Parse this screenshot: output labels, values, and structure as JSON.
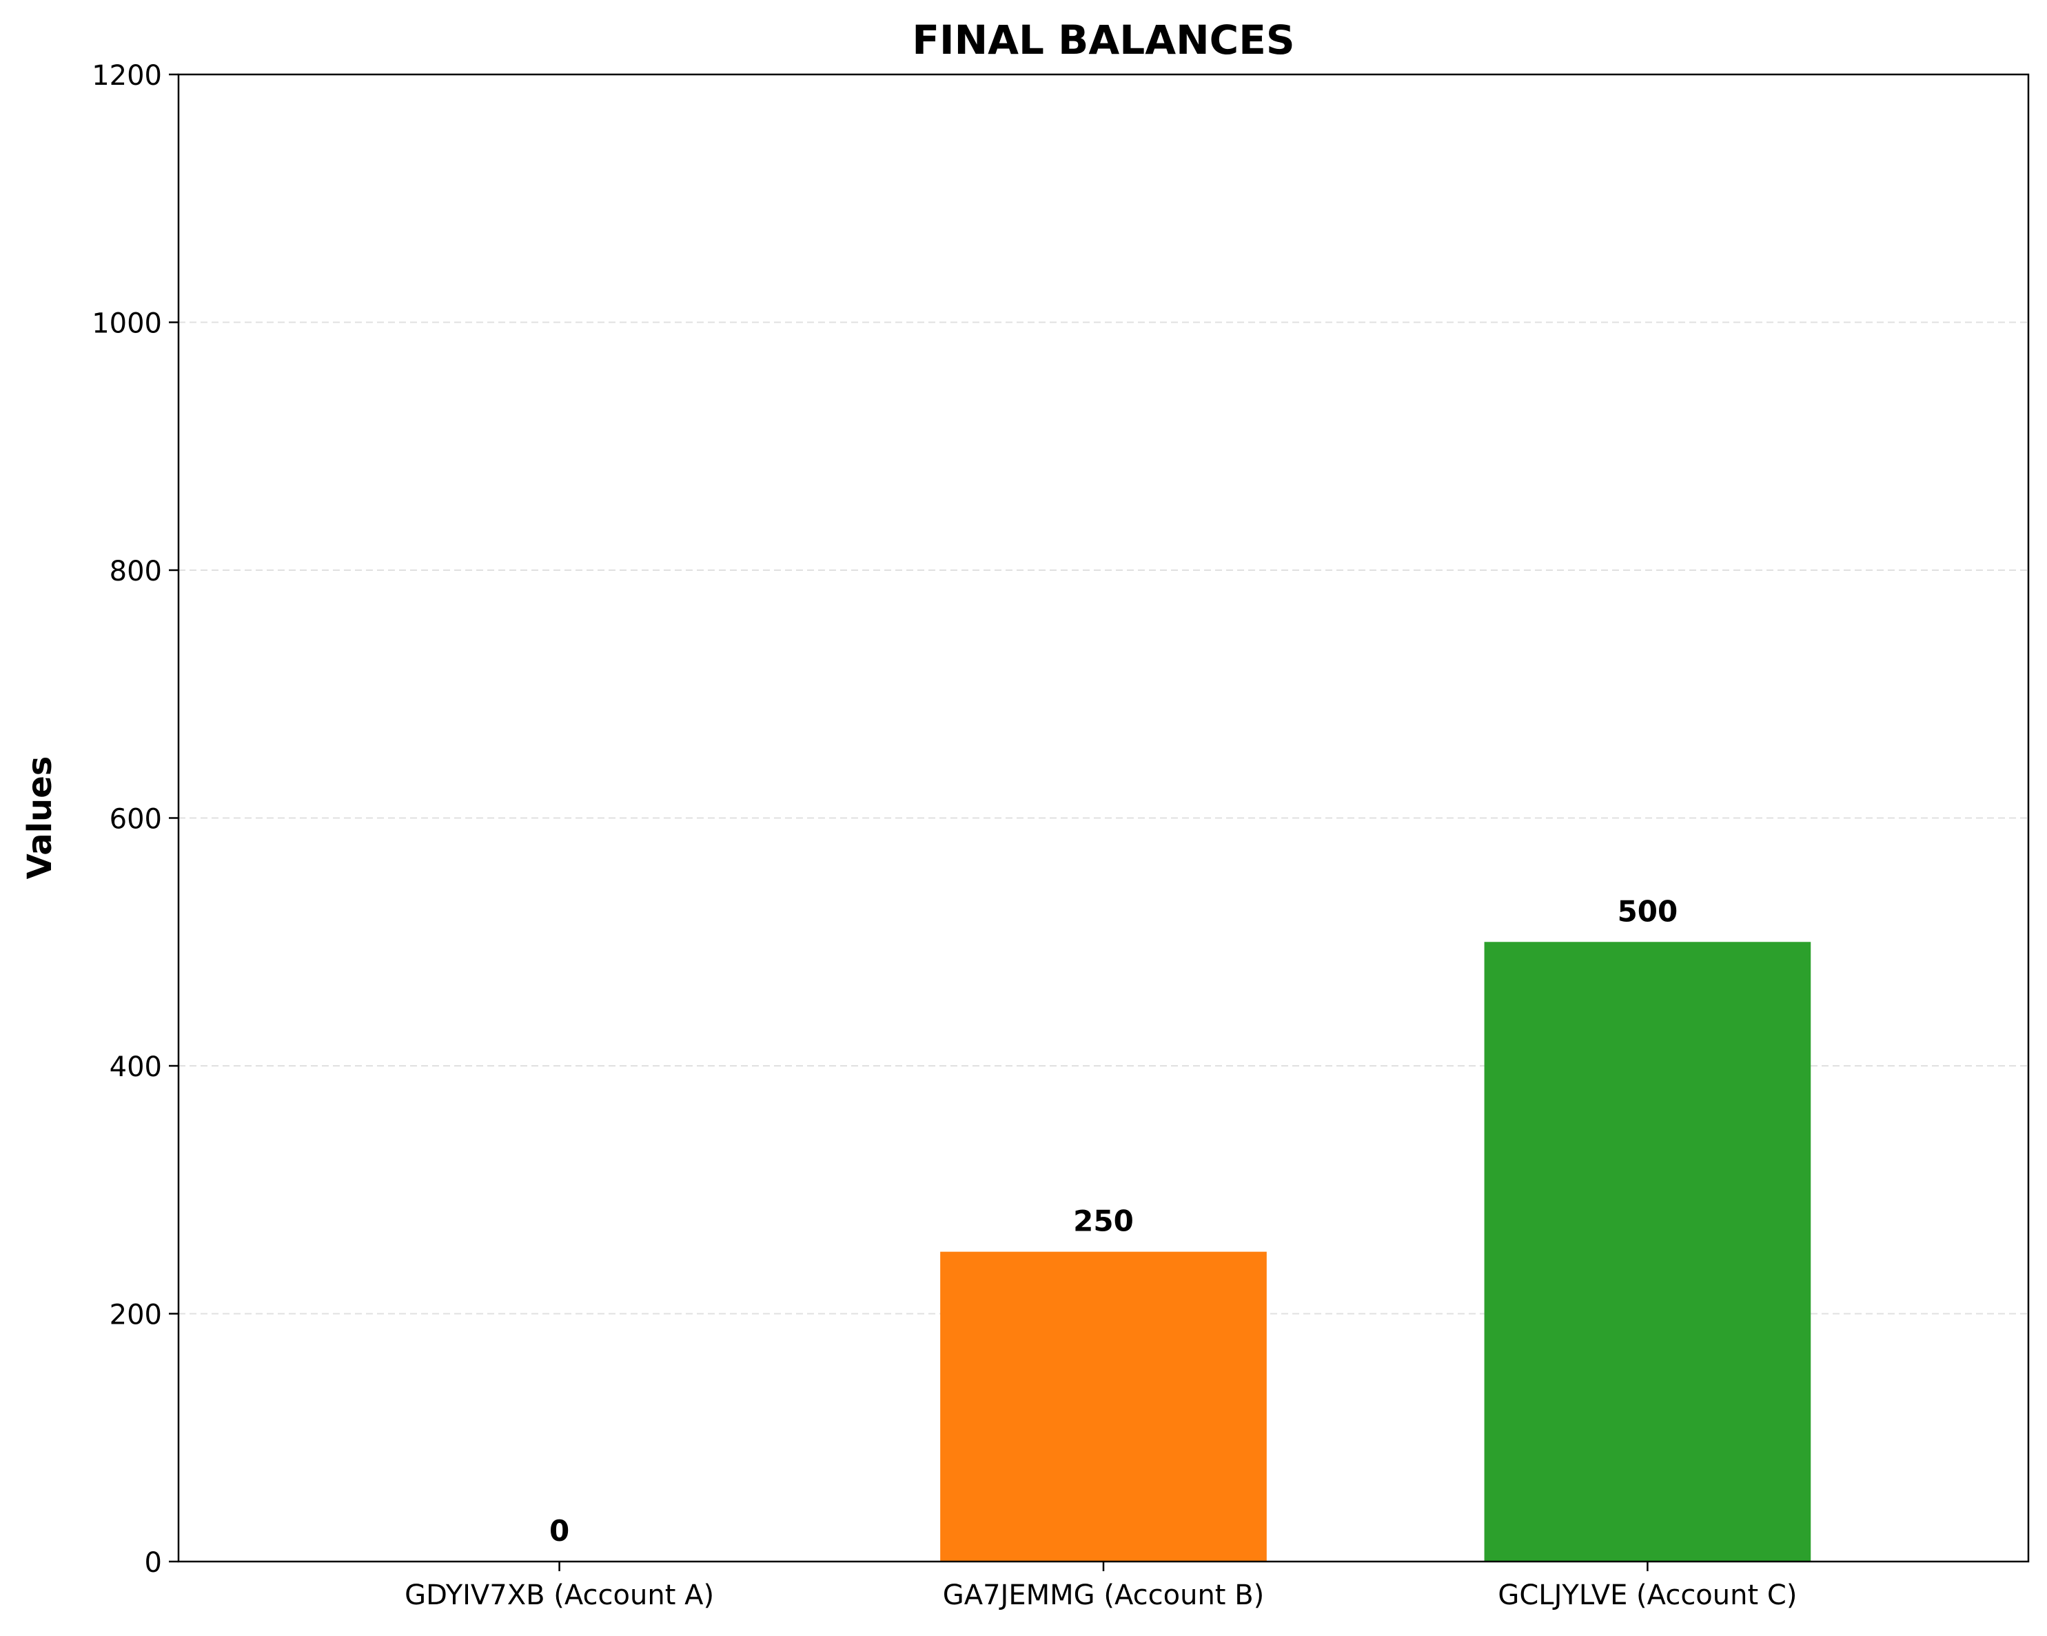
{
  "chart_data": {
    "type": "bar",
    "title": "FINAL BALANCES",
    "xlabel": "",
    "ylabel": "Values",
    "categories": [
      "GDYIV7XB (Account A)",
      "GA7JEMMG (Account B)",
      "GCLJYLVE (Account C)"
    ],
    "values": [
      0,
      250,
      500
    ],
    "data_labels": [
      "0",
      "250",
      "500"
    ],
    "bar_colors": [
      "#1f77b4",
      "#ff7f0e",
      "#2ca02c"
    ],
    "ylim": [
      0,
      1200
    ],
    "yticks": [
      0,
      200,
      400,
      600,
      800,
      1000,
      1200
    ],
    "ytick_labels": [
      "0",
      "200",
      "400",
      "600",
      "800",
      "1000",
      "1200"
    ],
    "grid": "y-axis, dashed, light gray",
    "legend": "none"
  }
}
